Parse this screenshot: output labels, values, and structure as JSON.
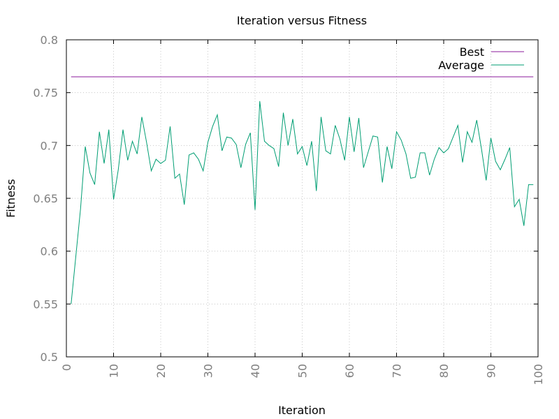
{
  "chart_data": {
    "type": "line",
    "title": "Iteration versus Fitness",
    "xlabel": "Iteration",
    "ylabel": "Fitness",
    "xlim": [
      0,
      100
    ],
    "ylim": [
      0.5,
      0.8
    ],
    "xticks": [
      "0",
      "10",
      "20",
      "30",
      "40",
      "50",
      "60",
      "70",
      "80",
      "90",
      "100"
    ],
    "yticks": [
      "0.5",
      "0.55",
      "0.6",
      "0.65",
      "0.7",
      "0.75",
      "0.8"
    ],
    "grid": true,
    "legend_position": "top-right",
    "x": [
      1,
      2,
      3,
      4,
      5,
      6,
      7,
      8,
      9,
      10,
      11,
      12,
      13,
      14,
      15,
      16,
      17,
      18,
      19,
      20,
      21,
      22,
      23,
      24,
      25,
      26,
      27,
      28,
      29,
      30,
      31,
      32,
      33,
      34,
      35,
      36,
      37,
      38,
      39,
      40,
      41,
      42,
      43,
      44,
      45,
      46,
      47,
      48,
      49,
      50,
      51,
      52,
      53,
      54,
      55,
      56,
      57,
      58,
      59,
      60,
      61,
      62,
      63,
      64,
      65,
      66,
      67,
      68,
      69,
      70,
      71,
      72,
      73,
      74,
      75,
      76,
      77,
      78,
      79,
      80,
      81,
      82,
      83,
      84,
      85,
      86,
      87,
      88,
      89,
      90,
      91,
      92,
      93,
      94,
      95,
      96,
      97,
      98,
      99
    ],
    "series": [
      {
        "name": "Best",
        "color": "#8b1a9b",
        "values": [
          0.765,
          0.765,
          0.765,
          0.765,
          0.765,
          0.765,
          0.765,
          0.765,
          0.765,
          0.765,
          0.765,
          0.765,
          0.765,
          0.765,
          0.765,
          0.765,
          0.765,
          0.765,
          0.765,
          0.765,
          0.765,
          0.765,
          0.765,
          0.765,
          0.765,
          0.765,
          0.765,
          0.765,
          0.765,
          0.765,
          0.765,
          0.765,
          0.765,
          0.765,
          0.765,
          0.765,
          0.765,
          0.765,
          0.765,
          0.765,
          0.765,
          0.765,
          0.765,
          0.765,
          0.765,
          0.765,
          0.765,
          0.765,
          0.765,
          0.765,
          0.765,
          0.765,
          0.765,
          0.765,
          0.765,
          0.765,
          0.765,
          0.765,
          0.765,
          0.765,
          0.765,
          0.765,
          0.765,
          0.765,
          0.765,
          0.765,
          0.765,
          0.765,
          0.765,
          0.765,
          0.765,
          0.765,
          0.765,
          0.765,
          0.765,
          0.765,
          0.765,
          0.765,
          0.765,
          0.765,
          0.765,
          0.765,
          0.765,
          0.765,
          0.765,
          0.765,
          0.765,
          0.765,
          0.765,
          0.765,
          0.765,
          0.765,
          0.765,
          0.765,
          0.765,
          0.765,
          0.765,
          0.765,
          0.765
        ]
      },
      {
        "name": "Average",
        "color": "#009e73",
        "values": [
          0.55,
          0.595,
          0.64,
          0.699,
          0.674,
          0.663,
          0.713,
          0.683,
          0.715,
          0.649,
          0.677,
          0.715,
          0.686,
          0.704,
          0.692,
          0.727,
          0.703,
          0.676,
          0.687,
          0.683,
          0.686,
          0.718,
          0.669,
          0.673,
          0.644,
          0.691,
          0.693,
          0.687,
          0.676,
          0.703,
          0.718,
          0.729,
          0.695,
          0.708,
          0.707,
          0.701,
          0.679,
          0.701,
          0.712,
          0.639,
          0.742,
          0.704,
          0.7,
          0.697,
          0.68,
          0.731,
          0.7,
          0.725,
          0.692,
          0.699,
          0.681,
          0.704,
          0.657,
          0.727,
          0.695,
          0.692,
          0.719,
          0.706,
          0.686,
          0.727,
          0.694,
          0.726,
          0.679,
          0.694,
          0.709,
          0.708,
          0.665,
          0.699,
          0.678,
          0.713,
          0.705,
          0.692,
          0.669,
          0.67,
          0.693,
          0.693,
          0.672,
          0.687,
          0.698,
          0.693,
          0.697,
          0.708,
          0.719,
          0.684,
          0.713,
          0.703,
          0.724,
          0.697,
          0.667,
          0.707,
          0.685,
          0.677,
          0.687,
          0.698,
          0.642,
          0.649,
          0.624,
          0.663,
          0.663
        ]
      }
    ]
  }
}
